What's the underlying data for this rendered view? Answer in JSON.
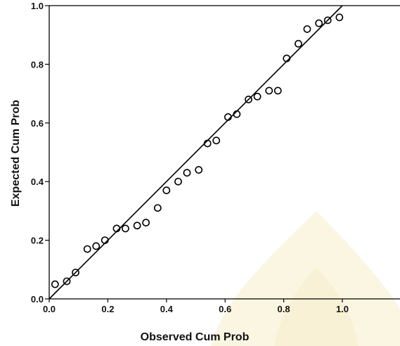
{
  "chart_data": {
    "type": "scatter",
    "title": "",
    "xlabel": "Observed Cum Prob",
    "ylabel": "Expected Cum Prob",
    "xlim": [
      0.0,
      1.0
    ],
    "ylim": [
      0.0,
      1.0
    ],
    "x_ticks": [
      "0.0",
      "0.2",
      "0.4",
      "0.6",
      "0.8",
      "1.0"
    ],
    "y_ticks": [
      "0.0",
      "0.2",
      "0.4",
      "0.6",
      "0.8",
      "1.0"
    ],
    "grid": false,
    "legend": "none",
    "reference_line": {
      "x": [
        0.0,
        1.0
      ],
      "y": [
        0.0,
        1.0
      ]
    },
    "series": [
      {
        "marker": "open-circle",
        "color": "#000000",
        "points": [
          {
            "x": 0.02,
            "y": 0.05
          },
          {
            "x": 0.06,
            "y": 0.06
          },
          {
            "x": 0.09,
            "y": 0.09
          },
          {
            "x": 0.13,
            "y": 0.17
          },
          {
            "x": 0.16,
            "y": 0.18
          },
          {
            "x": 0.19,
            "y": 0.2
          },
          {
            "x": 0.23,
            "y": 0.24
          },
          {
            "x": 0.26,
            "y": 0.24
          },
          {
            "x": 0.3,
            "y": 0.25
          },
          {
            "x": 0.33,
            "y": 0.26
          },
          {
            "x": 0.37,
            "y": 0.31
          },
          {
            "x": 0.4,
            "y": 0.37
          },
          {
            "x": 0.44,
            "y": 0.4
          },
          {
            "x": 0.47,
            "y": 0.43
          },
          {
            "x": 0.51,
            "y": 0.44
          },
          {
            "x": 0.54,
            "y": 0.53
          },
          {
            "x": 0.57,
            "y": 0.54
          },
          {
            "x": 0.61,
            "y": 0.62
          },
          {
            "x": 0.64,
            "y": 0.63
          },
          {
            "x": 0.68,
            "y": 0.68
          },
          {
            "x": 0.71,
            "y": 0.69
          },
          {
            "x": 0.75,
            "y": 0.71
          },
          {
            "x": 0.78,
            "y": 0.71
          },
          {
            "x": 0.81,
            "y": 0.82
          },
          {
            "x": 0.85,
            "y": 0.87
          },
          {
            "x": 0.88,
            "y": 0.92
          },
          {
            "x": 0.92,
            "y": 0.94
          },
          {
            "x": 0.95,
            "y": 0.95
          },
          {
            "x": 0.99,
            "y": 0.96
          }
        ]
      }
    ]
  }
}
